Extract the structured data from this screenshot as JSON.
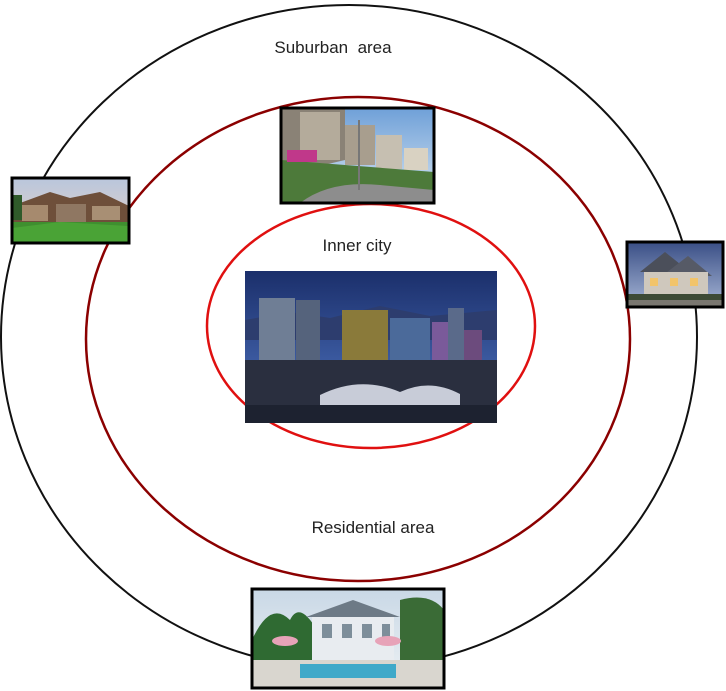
{
  "labels": {
    "outer": "Suburban  area",
    "middle": "Residential area",
    "inner": "Inner city"
  },
  "colors": {
    "outer_ring": "#111111",
    "middle_ring": "#8b0000",
    "inner_ring": "#e01010"
  },
  "photos": [
    {
      "id": "inner-city-skyline",
      "depicts": "city skyline at dusk"
    },
    {
      "id": "residential-hillside-houses",
      "depicts": "row of houses on a hillside street"
    },
    {
      "id": "suburban-ranch-house",
      "depicts": "single-storey ranch house with lawn"
    },
    {
      "id": "suburban-two-storey-house",
      "depicts": "two-storey house at dusk"
    },
    {
      "id": "suburban-mansion-pool",
      "depicts": "large house with pool and palm trees"
    }
  ]
}
